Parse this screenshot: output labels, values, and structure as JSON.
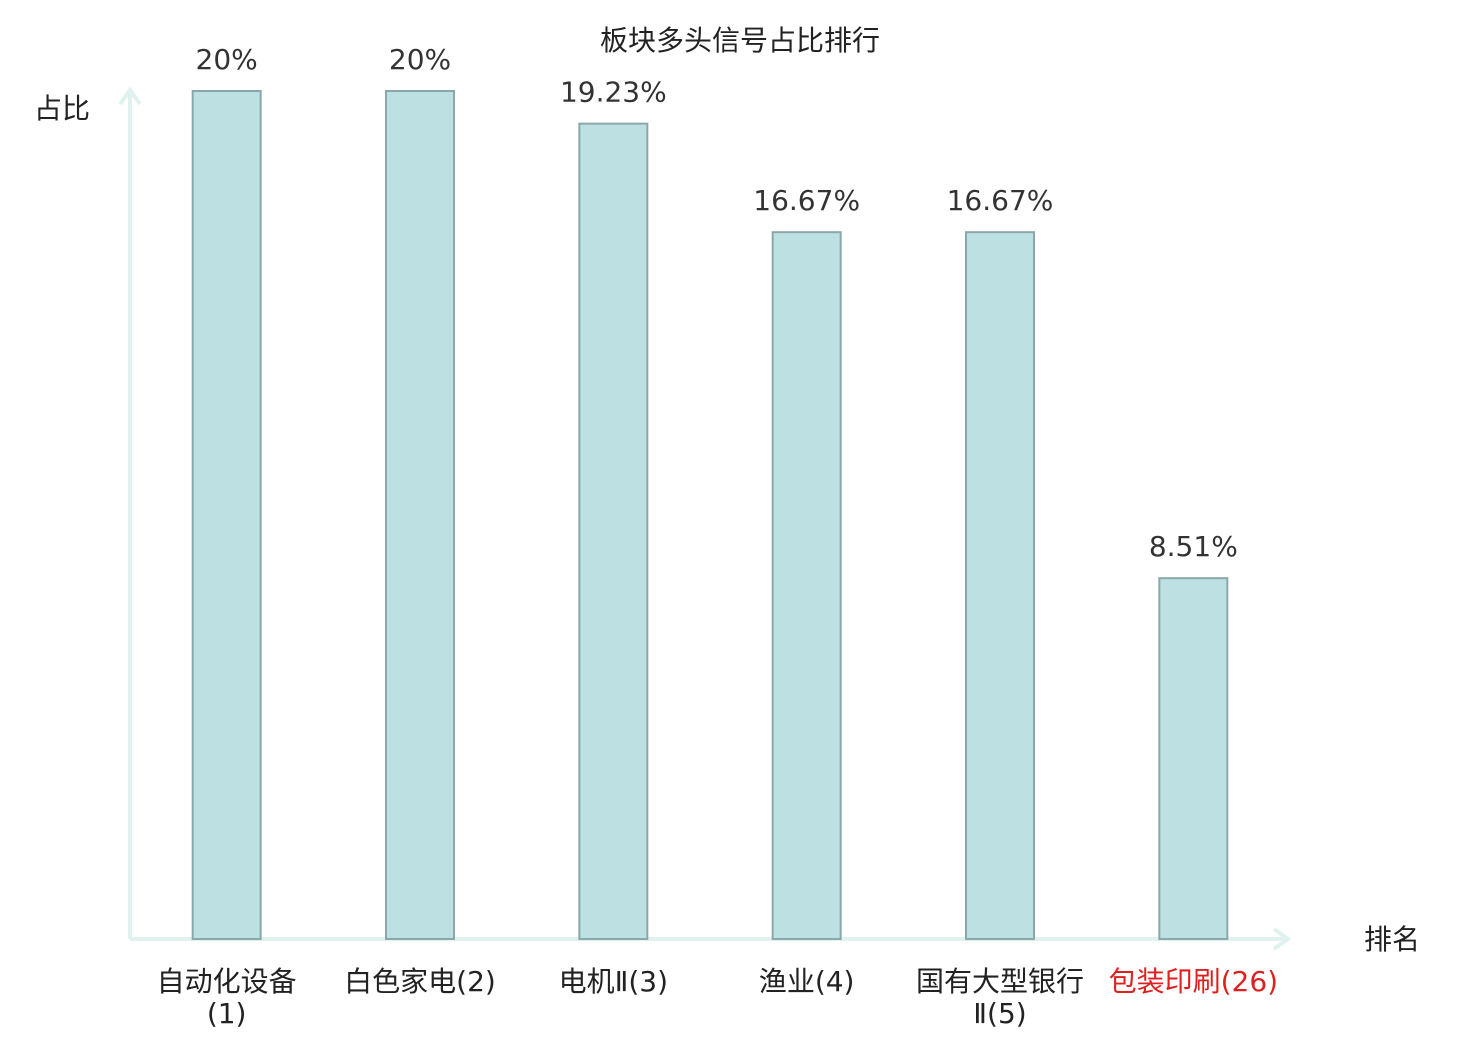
{
  "chart_data": {
    "type": "bar",
    "title": "板块多头信号占比排行",
    "y_label": "占比",
    "x_label": "排名",
    "categories": [
      "自动化设备(1)",
      "白色家电(2)",
      "电机Ⅱ(3)",
      "渔业(4)",
      "国有大型银行Ⅱ(5)",
      "包装印刷(26)"
    ],
    "category_label_colors": [
      "#222222",
      "#222222",
      "#222222",
      "#222222",
      "#222222",
      "#e02020"
    ],
    "values": [
      20,
      20,
      19.23,
      16.67,
      16.67,
      8.51
    ],
    "value_labels": [
      "20%",
      "20%",
      "19.23%",
      "16.67%",
      "16.67%",
      "8.51%"
    ],
    "color": "#bde0e3",
    "edge_color": "#8aa8aa",
    "ylim": [
      0,
      20
    ]
  }
}
